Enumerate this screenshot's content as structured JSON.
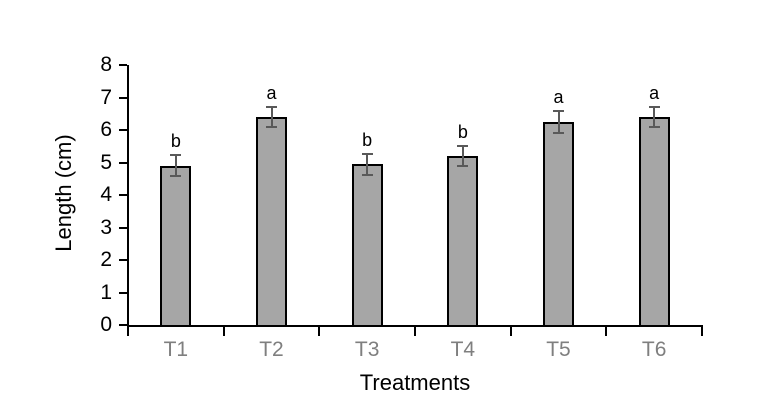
{
  "chart_data": {
    "type": "bar",
    "title": "",
    "categories": [
      "T1",
      "T2",
      "T3",
      "T4",
      "T5",
      "T6"
    ],
    "values": [
      4.9,
      6.4,
      4.95,
      5.2,
      6.25,
      6.4
    ],
    "errors": [
      0.32,
      0.3,
      0.32,
      0.32,
      0.33,
      0.3
    ],
    "sig_letters": [
      "b",
      "a",
      "b",
      "b",
      "a",
      "a"
    ],
    "xlabel": "Treatments",
    "ylabel": "Length (cm)",
    "ylim": [
      0,
      8
    ],
    "yticks": [
      0,
      1,
      2,
      3,
      4,
      5,
      6,
      7,
      8
    ],
    "grid": false,
    "legend_position": "none",
    "colors": {
      "bar_fill": "#a6a6a6",
      "bar_border": "#000000",
      "error_bar": "#595959",
      "axis": "#000000",
      "ytick_label": "#000000",
      "xtick_label": "#7f7f7f",
      "background": "#ffffff"
    }
  }
}
